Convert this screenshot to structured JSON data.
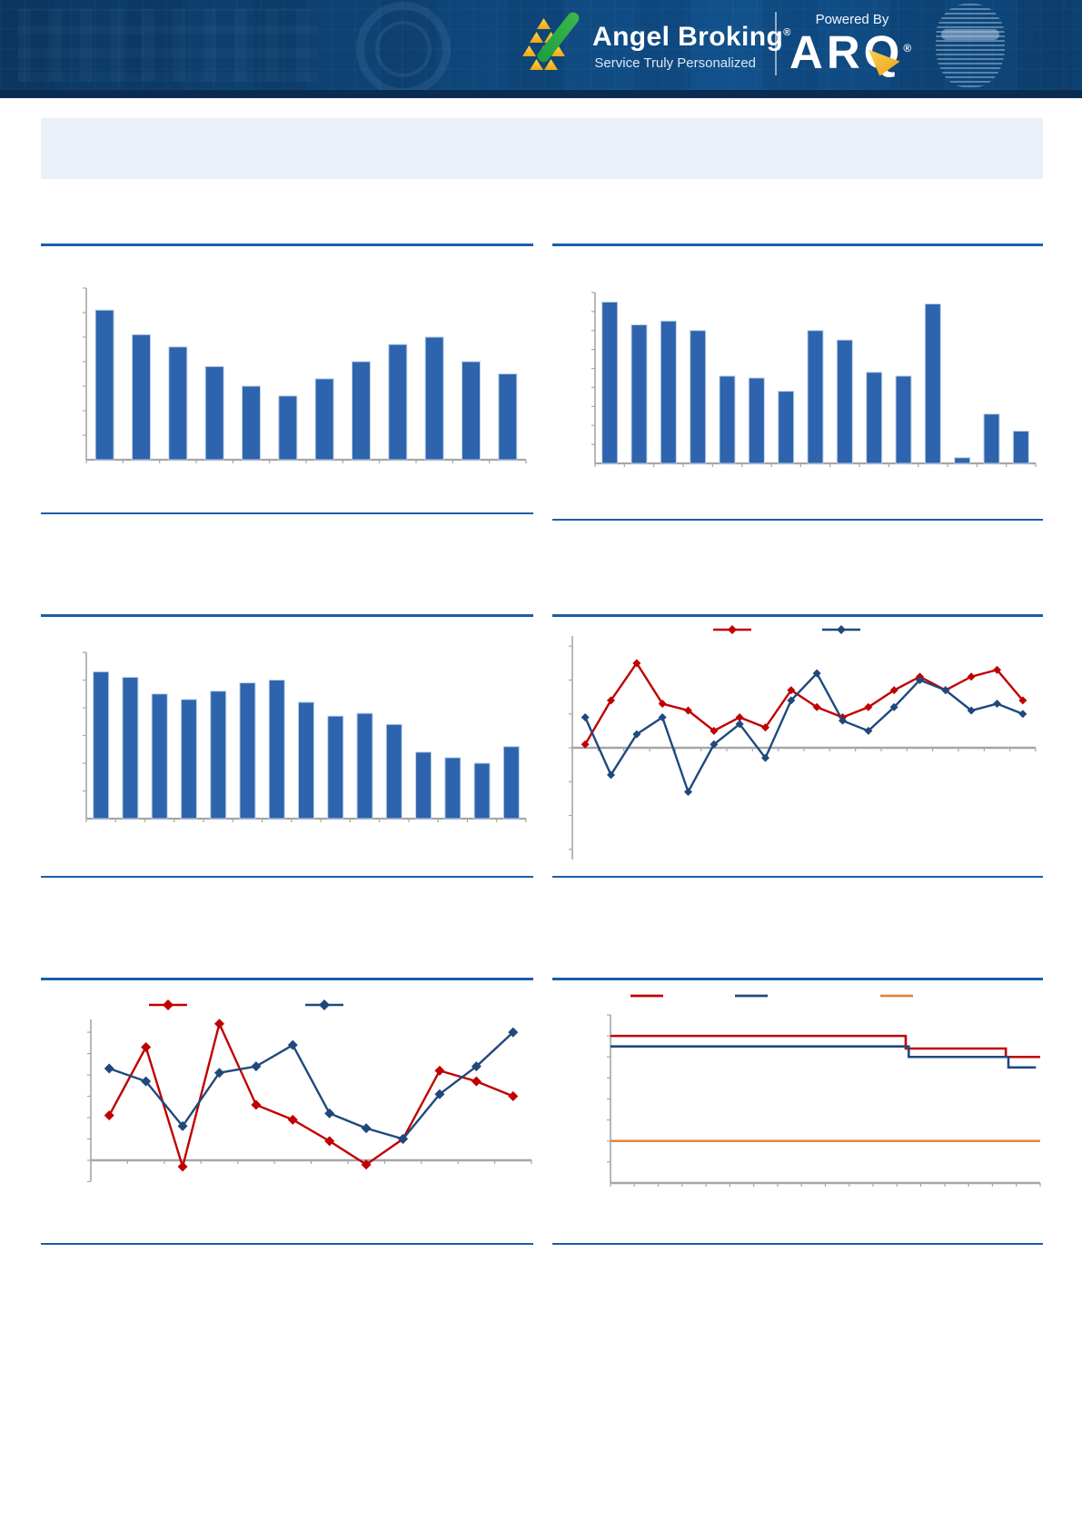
{
  "header": {
    "brand": "Angel Broking",
    "brand_reg": "®",
    "tagline": "Service Truly Personalized",
    "powered_by": "Powered By",
    "arq": "ARQ",
    "arq_reg": "®"
  },
  "title_box": {
    "text": ""
  },
  "colors": {
    "header_bg": "#0e4374",
    "header_strip": "#0a2c50",
    "rule_blue": "#1a5dab",
    "bar_blue": "#2e64ad",
    "bar_edge": "#bdd0ea",
    "line_red": "#c00000",
    "line_blue": "#1f497d",
    "line_orange": "#e2853c",
    "axis_gray": "#a6a6a6",
    "title_box_bg": "#e9f0f8",
    "logo_green": "#2faa45",
    "logo_yellow": "#f5b60d"
  },
  "chart_data": [
    {
      "id": "bar-top-left",
      "type": "bar",
      "title": "",
      "categories_visible": false,
      "values": [
        6.1,
        5.1,
        4.6,
        3.8,
        3.0,
        2.6,
        3.3,
        4.0,
        4.7,
        5.0,
        4.0,
        3.5
      ],
      "ylim": [
        0,
        7
      ],
      "yticks": 7
    },
    {
      "id": "bar-top-right",
      "type": "bar",
      "title": "",
      "categories_visible": false,
      "values": [
        8.5,
        7.3,
        7.5,
        7.0,
        4.6,
        4.5,
        3.8,
        7.0,
        6.5,
        4.8,
        4.6,
        8.4,
        0.3,
        2.6,
        1.7
      ],
      "ylim": [
        0,
        9
      ],
      "yticks": 9
    },
    {
      "id": "bar-mid-left",
      "type": "bar",
      "title": "",
      "categories_visible": false,
      "values": [
        5.3,
        5.1,
        4.5,
        4.3,
        4.6,
        4.9,
        5.0,
        4.2,
        3.7,
        3.8,
        3.4,
        2.4,
        2.2,
        2.0,
        2.6
      ],
      "ylim": [
        0,
        6
      ],
      "yticks": 6
    },
    {
      "id": "line-mid-right",
      "type": "line",
      "title": "",
      "categories_visible": false,
      "legend_position": "top",
      "legend_labels_visible": false,
      "series": [
        {
          "name": "series-red",
          "color": "#c00000",
          "values": [
            0.1,
            1.4,
            2.5,
            1.3,
            1.1,
            0.5,
            0.9,
            0.6,
            1.7,
            1.2,
            0.9,
            1.2,
            1.7,
            2.1,
            1.7,
            2.1,
            2.3,
            1.4
          ]
        },
        {
          "name": "series-blue",
          "color": "#1f497d",
          "values": [
            0.9,
            -0.8,
            0.4,
            0.9,
            -1.3,
            0.1,
            0.7,
            -0.3,
            1.4,
            2.2,
            0.8,
            0.5,
            1.2,
            2.0,
            1.7,
            1.1,
            1.3,
            1.0
          ]
        }
      ],
      "ylim": [
        -3.3,
        3.3
      ]
    },
    {
      "id": "line-bottom-left",
      "type": "line",
      "title": "",
      "categories_visible": false,
      "legend_position": "top",
      "legend_labels_visible": false,
      "series": [
        {
          "name": "series-red",
          "color": "#c00000",
          "values": [
            2.1,
            5.3,
            -0.3,
            6.4,
            2.6,
            1.9,
            0.9,
            -0.2,
            1.0,
            4.2,
            3.7,
            3.0
          ]
        },
        {
          "name": "series-blue",
          "color": "#1f497d",
          "values": [
            4.3,
            3.7,
            1.6,
            4.1,
            4.4,
            5.4,
            2.2,
            1.5,
            1.0,
            3.1,
            4.4,
            6.0
          ]
        }
      ],
      "ylim": [
        -1.0,
        6.6
      ]
    },
    {
      "id": "step-bottom-right",
      "type": "step",
      "title": "",
      "categories_visible": false,
      "legend_position": "top",
      "legend_labels_visible": false,
      "series": [
        {
          "name": "series-red",
          "color": "#c00000",
          "levels": [
            7.0,
            6.4,
            6.0
          ],
          "breaks": [
            0.687,
            0.92
          ],
          "end": 1.0
        },
        {
          "name": "series-blue",
          "color": "#1f497d",
          "levels": [
            6.5,
            6.0,
            5.5
          ],
          "breaks": [
            0.694,
            0.926
          ],
          "end": 0.99
        },
        {
          "name": "series-orange",
          "color": "#e2853c",
          "levels": [
            2.0
          ],
          "breaks": [],
          "end": 1.0
        }
      ],
      "ylim": [
        0,
        8
      ],
      "yticks": 8,
      "xticks": 18
    }
  ]
}
